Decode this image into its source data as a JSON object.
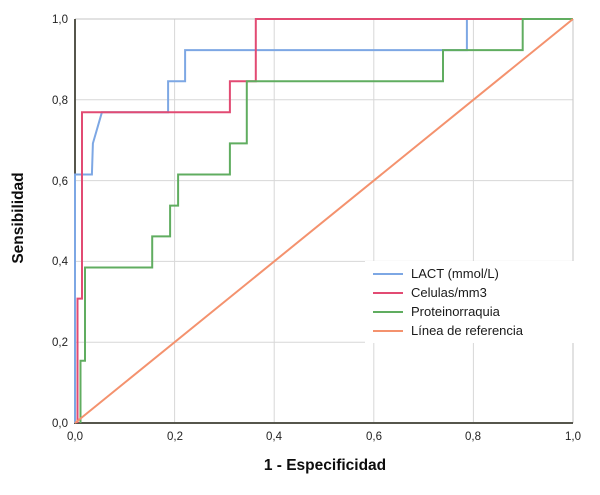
{
  "chart_data": {
    "type": "line",
    "subtype": "roc-step-curves",
    "title": "",
    "xlabel": "1 - Especificidad",
    "ylabel": "Sensibilidad",
    "xlim": [
      0,
      1
    ],
    "ylim": [
      0,
      1
    ],
    "grid": true,
    "legend_position": "inside-right-middle",
    "x_ticks": [
      0,
      0.2,
      0.4,
      0.6,
      0.8,
      1.0
    ],
    "y_ticks": [
      0,
      0.2,
      0.4,
      0.6,
      0.8,
      1.0
    ],
    "x_tick_labels": [
      "0,0",
      "0,2",
      "0,4",
      "0,6",
      "0,8",
      "1,0"
    ],
    "y_tick_labels": [
      "0,0",
      "0,2",
      "0,4",
      "0,6",
      "0,8",
      "1,0"
    ],
    "colors": {
      "grid": "#D7D7D7",
      "frame": "#C6C6C6",
      "axis": "#56564C",
      "text": "#1f1f1f"
    },
    "series": [
      {
        "name": "LACT (mmol/L)",
        "color": "#7DA7E4",
        "points": [
          [
            0,
            0
          ],
          [
            0,
            0.615
          ],
          [
            0.034,
            0.615
          ],
          [
            0.036,
            0.692
          ],
          [
            0.054,
            0.769
          ],
          [
            0.187,
            0.769
          ],
          [
            0.187,
            0.846
          ],
          [
            0.221,
            0.846
          ],
          [
            0.221,
            0.923
          ],
          [
            0.787,
            0.923
          ],
          [
            0.787,
            1
          ],
          [
            1,
            1
          ]
        ]
      },
      {
        "name": "Celulas/mm3",
        "color": "#E24B73",
        "points": [
          [
            0.005,
            0
          ],
          [
            0.005,
            0.308
          ],
          [
            0.014,
            0.308
          ],
          [
            0.014,
            0.769
          ],
          [
            0.311,
            0.769
          ],
          [
            0.311,
            0.846
          ],
          [
            0.363,
            0.846
          ],
          [
            0.363,
            1
          ],
          [
            1,
            1
          ]
        ]
      },
      {
        "name": "Proteinorraquia",
        "color": "#60AD60",
        "points": [
          [
            0.011,
            0
          ],
          [
            0.011,
            0.154
          ],
          [
            0.02,
            0.154
          ],
          [
            0.02,
            0.385
          ],
          [
            0.155,
            0.385
          ],
          [
            0.155,
            0.462
          ],
          [
            0.191,
            0.462
          ],
          [
            0.191,
            0.538
          ],
          [
            0.207,
            0.538
          ],
          [
            0.207,
            0.615
          ],
          [
            0.311,
            0.615
          ],
          [
            0.311,
            0.692
          ],
          [
            0.345,
            0.692
          ],
          [
            0.345,
            0.846
          ],
          [
            0.739,
            0.846
          ],
          [
            0.739,
            0.923
          ],
          [
            0.899,
            0.923
          ],
          [
            0.899,
            1
          ],
          [
            1,
            1
          ]
        ]
      },
      {
        "name": "Línea de referencia",
        "color": "#F4926E",
        "points": [
          [
            0,
            0
          ],
          [
            1,
            1
          ]
        ]
      }
    ]
  }
}
